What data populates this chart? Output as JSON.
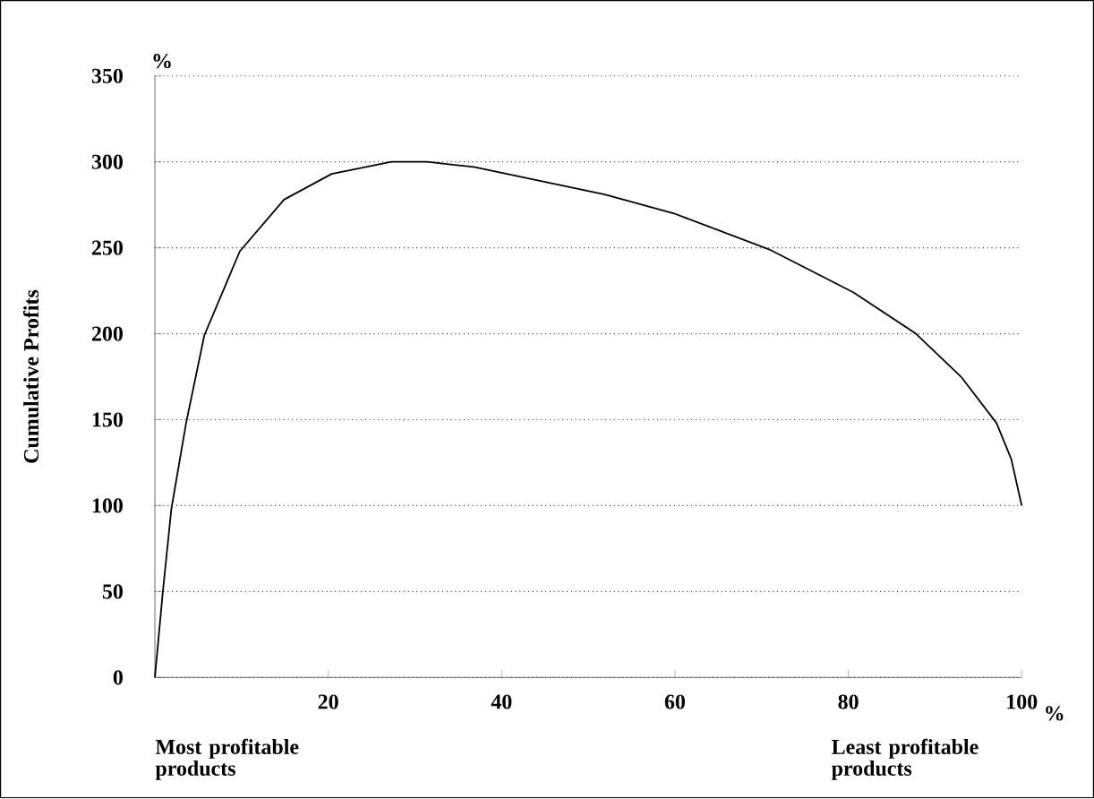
{
  "chart_data": {
    "type": "line",
    "ylabel": "Cumulative Profits",
    "annotations": [
      "%",
      "%",
      "Most profitable products",
      "Least profitable products"
    ],
    "x": [
      0,
      0.9,
      1.9,
      3.6,
      5.7,
      9.8,
      14.9,
      20.4,
      27.3,
      31.4,
      36.8,
      51.9,
      59.9,
      70.9,
      80.6,
      87.8,
      93,
      97.1,
      98.8,
      100
    ],
    "values": [
      0,
      49,
      98,
      148,
      199,
      248,
      278,
      293,
      300,
      300,
      297,
      281,
      270,
      249,
      224,
      200,
      175,
      148,
      127,
      100
    ],
    "color": "#000000",
    "xlim": [
      0,
      100
    ],
    "ylim": [
      0,
      350
    ],
    "xticks": [
      20,
      40,
      60,
      80,
      100
    ],
    "yticks": [
      0,
      50,
      100,
      150,
      200,
      250,
      300,
      350
    ],
    "grid": "y",
    "marker": "none",
    "line_style": "solid"
  }
}
